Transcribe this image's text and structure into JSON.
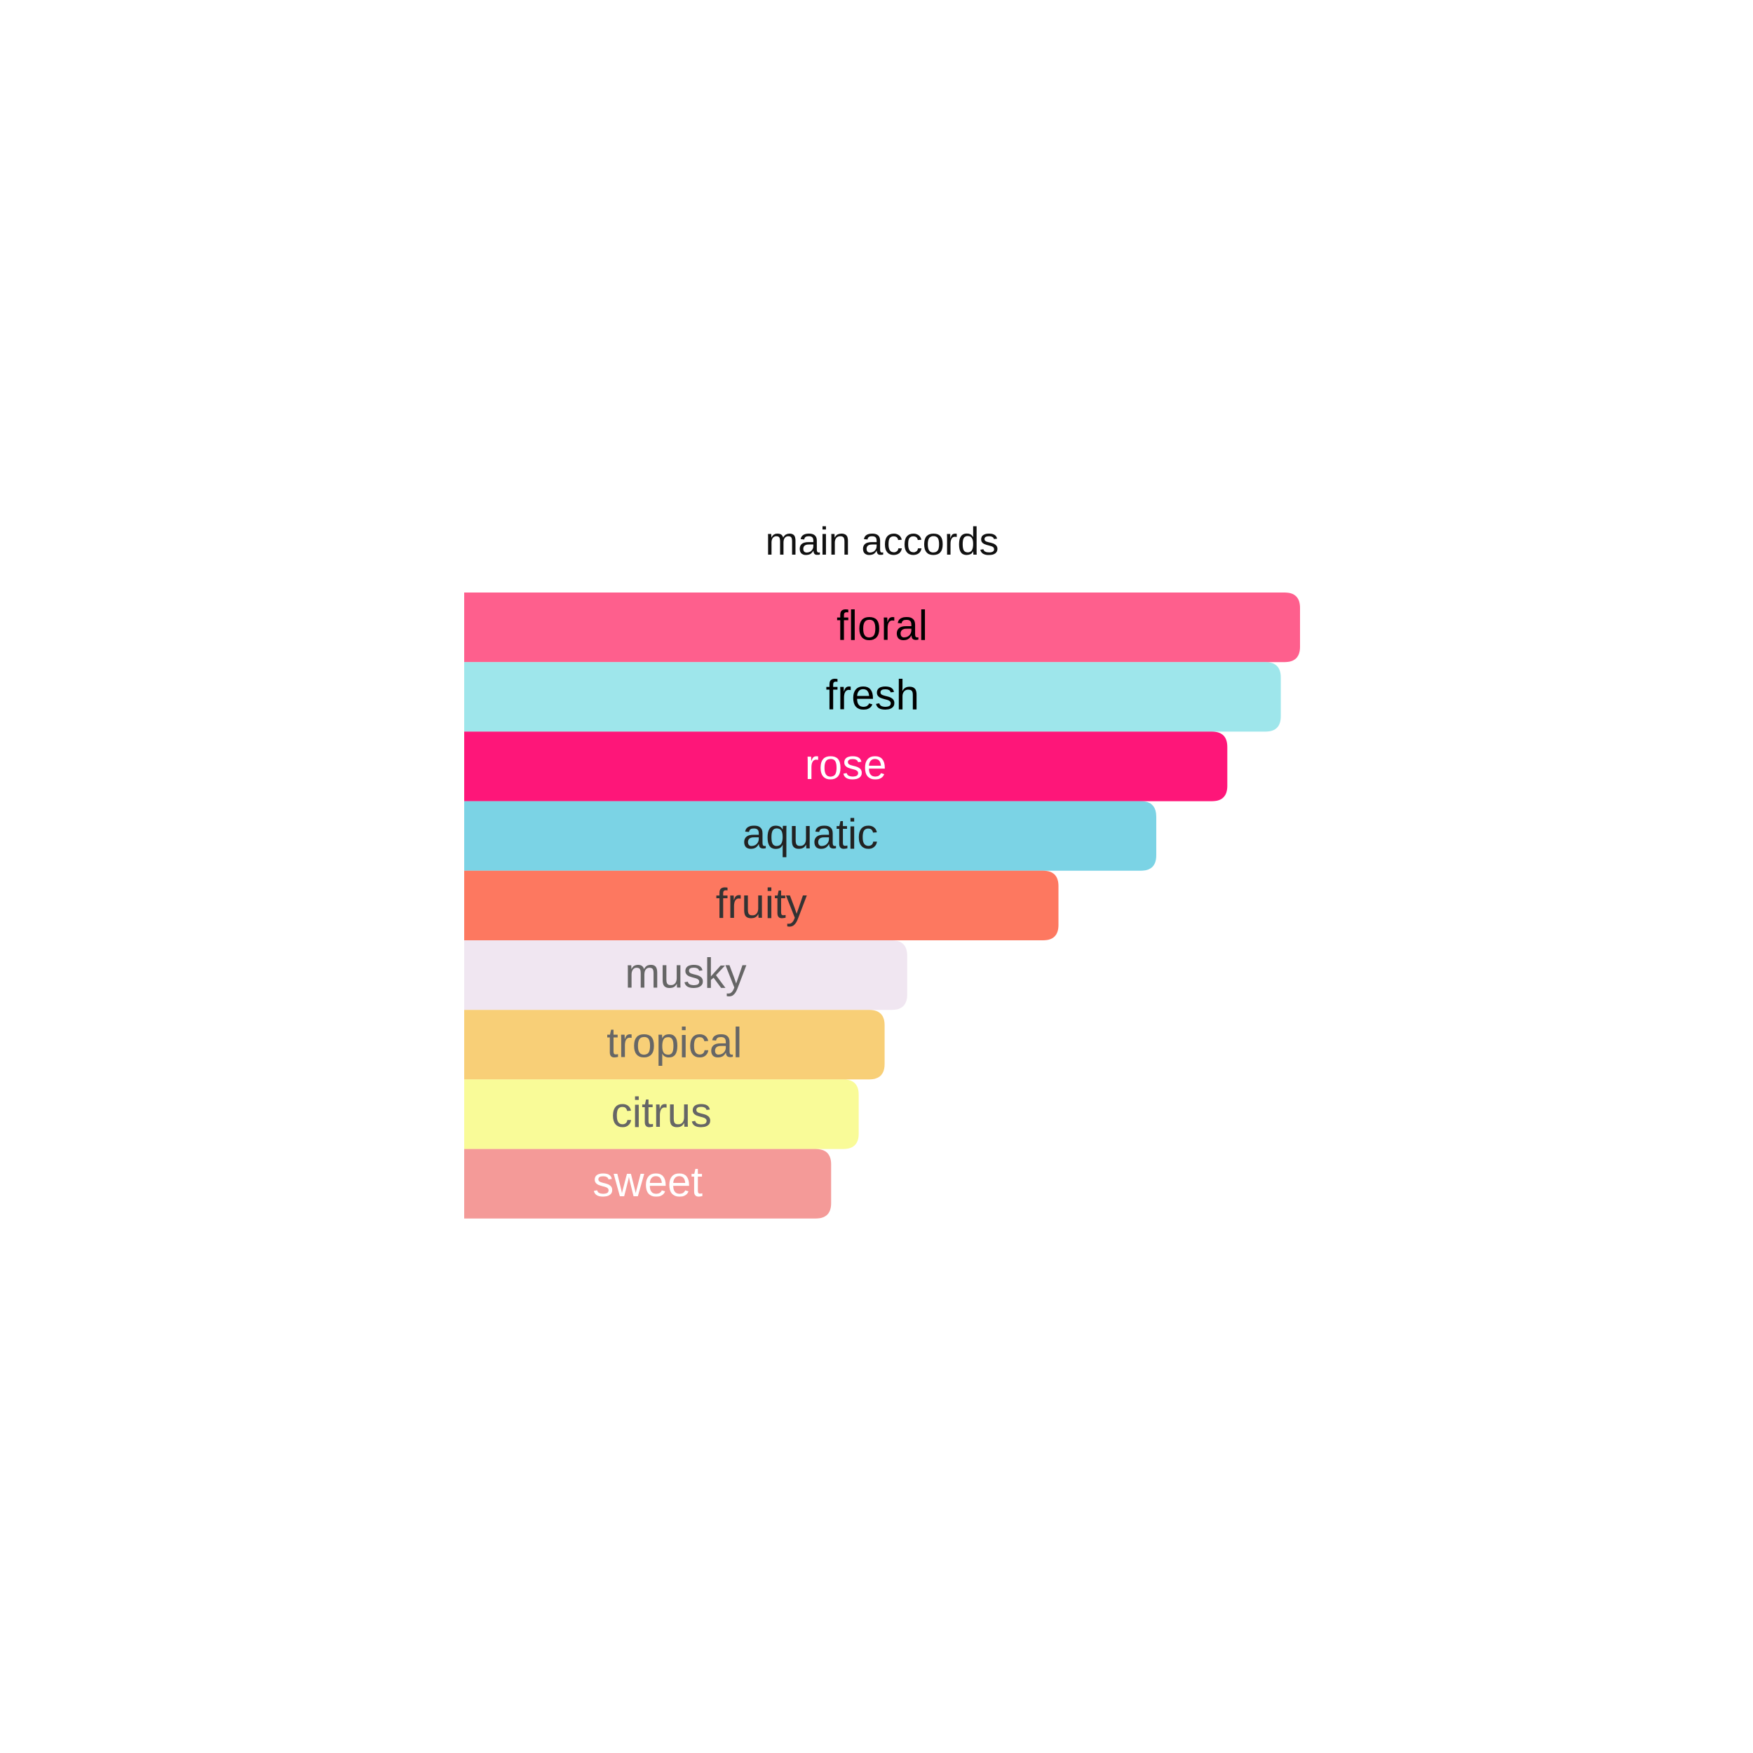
{
  "chart_data": {
    "type": "bar",
    "orientation": "horizontal",
    "title": "main accords",
    "categories": [
      "floral",
      "fresh",
      "rose",
      "aquatic",
      "fruity",
      "musky",
      "tropical",
      "citrus",
      "sweet"
    ],
    "values": [
      100,
      97.7,
      91.3,
      82.8,
      71.1,
      53.0,
      50.3,
      47.2,
      43.9
    ],
    "colors": [
      "#fe5f8d",
      "#9ee6eb",
      "#fe1679",
      "#7bd3e5",
      "#fd7860",
      "#f0e6f1",
      "#f8cf77",
      "#f9fb98",
      "#f49a98"
    ],
    "label_colors": [
      "#000000",
      "#000000",
      "#ffffff",
      "#222222",
      "#333333",
      "#666666",
      "#666666",
      "#666666",
      "#ffffff"
    ],
    "xlim": [
      0,
      100
    ]
  }
}
